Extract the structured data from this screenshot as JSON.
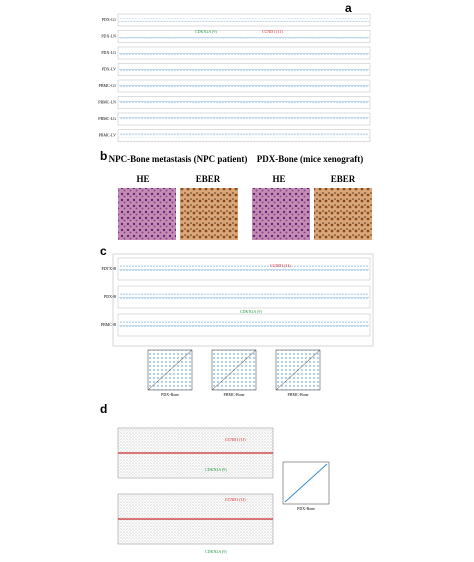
{
  "panels": [
    {
      "label": "a",
      "tracks": [
        "PDX-G1",
        "PDX-LN",
        "PDX-LG",
        "PDX-LV",
        "PBMC-G1",
        "PBMC-LN",
        "PBMC-LG",
        "PBMC-LV"
      ],
      "annotations": [
        "CDKN2A (9)",
        "CCND1 (11)"
      ]
    },
    {
      "label": "b",
      "groups": [
        {
          "title": "NPC-Bone metastasis (NPC patient)",
          "stains": [
            "HE",
            "EBER"
          ]
        },
        {
          "title": "PDX-Bone (mice xenograft)",
          "stains": [
            "HE",
            "EBER"
          ]
        }
      ]
    },
    {
      "label": "c",
      "tracks": [
        "PDTX-B",
        "PDX-B",
        "PBMC-B"
      ],
      "annotations": [
        "CCND1 (11)",
        "CDKN2A (9)"
      ],
      "scatter_x_labels": [
        "PDX-Bone",
        "PBMC-Bone",
        "PBMC-Bone"
      ]
    },
    {
      "label": "d",
      "annotations": [
        "CCND1 (11)",
        "CDKN2A (9)",
        "CCND1 (11)",
        "CDKN2A (9)"
      ],
      "scatter_x_label": "PDX-Bone"
    }
  ]
}
